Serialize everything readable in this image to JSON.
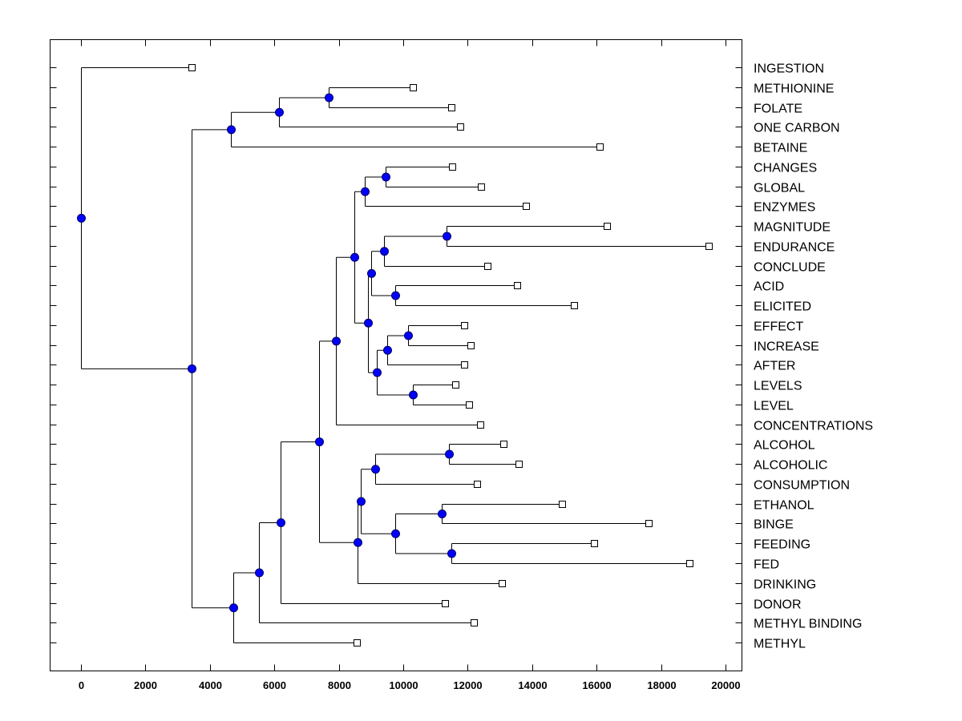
{
  "chart_data": {
    "type": "dendrogram",
    "title": "",
    "xlabel": "",
    "ylabel": "",
    "xlim": [
      -950,
      20500
    ],
    "x_ticks": [
      0,
      2000,
      4000,
      6000,
      8000,
      10000,
      12000,
      14000,
      16000,
      18000,
      20000
    ],
    "x_tick_labels": [
      "0",
      "2000",
      "4000",
      "6000",
      "8000",
      "10000",
      "12000",
      "14000",
      "16000",
      "18000",
      "20000"
    ],
    "grid": false,
    "leaf_label_position": "right",
    "colors": {
      "internal_node": "#0000ff",
      "leaf_marker": "#ffffff",
      "lines": "#000000"
    },
    "leaves": [
      {
        "id": "L0",
        "label": "INGESTION",
        "x": 3430
      },
      {
        "id": "L1",
        "label": "METHIONINE",
        "x": 10300
      },
      {
        "id": "L2",
        "label": "FOLATE",
        "x": 11490
      },
      {
        "id": "L3",
        "label": "ONE CARBON",
        "x": 11770
      },
      {
        "id": "L4",
        "label": "BETAINE",
        "x": 16100
      },
      {
        "id": "L5",
        "label": "CHANGES",
        "x": 11520
      },
      {
        "id": "L6",
        "label": "GLOBAL",
        "x": 12410
      },
      {
        "id": "L7",
        "label": "ENZYMES",
        "x": 13800
      },
      {
        "id": "L8",
        "label": "MAGNITUDE",
        "x": 16320
      },
      {
        "id": "L9",
        "label": "ENDURANCE",
        "x": 19480
      },
      {
        "id": "L10",
        "label": "CONCLUDE",
        "x": 12610
      },
      {
        "id": "L11",
        "label": "ACID",
        "x": 13530
      },
      {
        "id": "L12",
        "label": "ELICITED",
        "x": 15300
      },
      {
        "id": "L13",
        "label": "EFFECT",
        "x": 11890
      },
      {
        "id": "L14",
        "label": "INCREASE",
        "x": 12090
      },
      {
        "id": "L15",
        "label": "AFTER",
        "x": 11890
      },
      {
        "id": "L16",
        "label": "LEVELS",
        "x": 11620
      },
      {
        "id": "L17",
        "label": "LEVEL",
        "x": 12040
      },
      {
        "id": "L18",
        "label": "CONCENTRATIONS",
        "x": 12390
      },
      {
        "id": "L19",
        "label": "ALCOHOL",
        "x": 13110
      },
      {
        "id": "L20",
        "label": "ALCOHOLIC",
        "x": 13580
      },
      {
        "id": "L21",
        "label": "CONSUMPTION",
        "x": 12290
      },
      {
        "id": "L22",
        "label": "ETHANOL",
        "x": 14930
      },
      {
        "id": "L23",
        "label": "BINGE",
        "x": 17610
      },
      {
        "id": "L24",
        "label": "FEEDING",
        "x": 15920
      },
      {
        "id": "L25",
        "label": "FED",
        "x": 18880
      },
      {
        "id": "L26",
        "label": "DRINKING",
        "x": 13060
      },
      {
        "id": "L27",
        "label": "DONOR",
        "x": 11290
      },
      {
        "id": "L28",
        "label": "METHYL BINDING",
        "x": 12190
      },
      {
        "id": "L29",
        "label": "METHYL",
        "x": 8560
      }
    ],
    "nodes": [
      {
        "id": "N_root",
        "x": 0,
        "children": [
          "L0",
          "N_D"
        ]
      },
      {
        "id": "N_D",
        "x": 3430,
        "children": [
          "N_A",
          "N_E"
        ]
      },
      {
        "id": "N_A",
        "x": 4650,
        "children": [
          "N_B",
          "L4"
        ]
      },
      {
        "id": "N_B",
        "x": 6140,
        "children": [
          "N_C",
          "L3"
        ]
      },
      {
        "id": "N_C",
        "x": 7690,
        "children": [
          "L1",
          "L2"
        ]
      },
      {
        "id": "N_E",
        "x": 4730,
        "children": [
          "N_F",
          "L29"
        ]
      },
      {
        "id": "N_F",
        "x": 5520,
        "children": [
          "N_G",
          "L28"
        ]
      },
      {
        "id": "N_G",
        "x": 6190,
        "children": [
          "N_H",
          "L27"
        ]
      },
      {
        "id": "N_H",
        "x": 7390,
        "children": [
          "N_I",
          "N_V"
        ]
      },
      {
        "id": "N_I",
        "x": 7910,
        "children": [
          "N_J",
          "L18"
        ]
      },
      {
        "id": "N_J",
        "x": 8480,
        "children": [
          "N_K",
          "N_M"
        ]
      },
      {
        "id": "N_K",
        "x": 8810,
        "children": [
          "N_L",
          "L7"
        ]
      },
      {
        "id": "N_L",
        "x": 9450,
        "children": [
          "L5",
          "L6"
        ]
      },
      {
        "id": "N_M",
        "x": 8910,
        "children": [
          "N_N",
          "N_R"
        ]
      },
      {
        "id": "N_N",
        "x": 9000,
        "children": [
          "N_O",
          "N_Q"
        ]
      },
      {
        "id": "N_O",
        "x": 9400,
        "children": [
          "N_P",
          "L10"
        ]
      },
      {
        "id": "N_P",
        "x": 11340,
        "children": [
          "L8",
          "L9"
        ]
      },
      {
        "id": "N_Q",
        "x": 9750,
        "children": [
          "L11",
          "L12"
        ]
      },
      {
        "id": "N_R",
        "x": 9180,
        "children": [
          "N_S",
          "N_U"
        ]
      },
      {
        "id": "N_S",
        "x": 9500,
        "children": [
          "N_T",
          "L15"
        ]
      },
      {
        "id": "N_T",
        "x": 10150,
        "children": [
          "L13",
          "L14"
        ]
      },
      {
        "id": "N_U",
        "x": 10300,
        "children": [
          "L16",
          "L17"
        ]
      },
      {
        "id": "N_V",
        "x": 8580,
        "children": [
          "N_W",
          "L26"
        ]
      },
      {
        "id": "N_W",
        "x": 8680,
        "children": [
          "N_X",
          "N_Z"
        ]
      },
      {
        "id": "N_X",
        "x": 9130,
        "children": [
          "N_Y",
          "L21"
        ]
      },
      {
        "id": "N_Y",
        "x": 11420,
        "children": [
          "L19",
          "L20"
        ]
      },
      {
        "id": "N_Z",
        "x": 9750,
        "children": [
          "N_AA",
          "N_AB"
        ]
      },
      {
        "id": "N_AA",
        "x": 11200,
        "children": [
          "L22",
          "L23"
        ]
      },
      {
        "id": "N_AB",
        "x": 11490,
        "children": [
          "L24",
          "L25"
        ]
      }
    ]
  }
}
